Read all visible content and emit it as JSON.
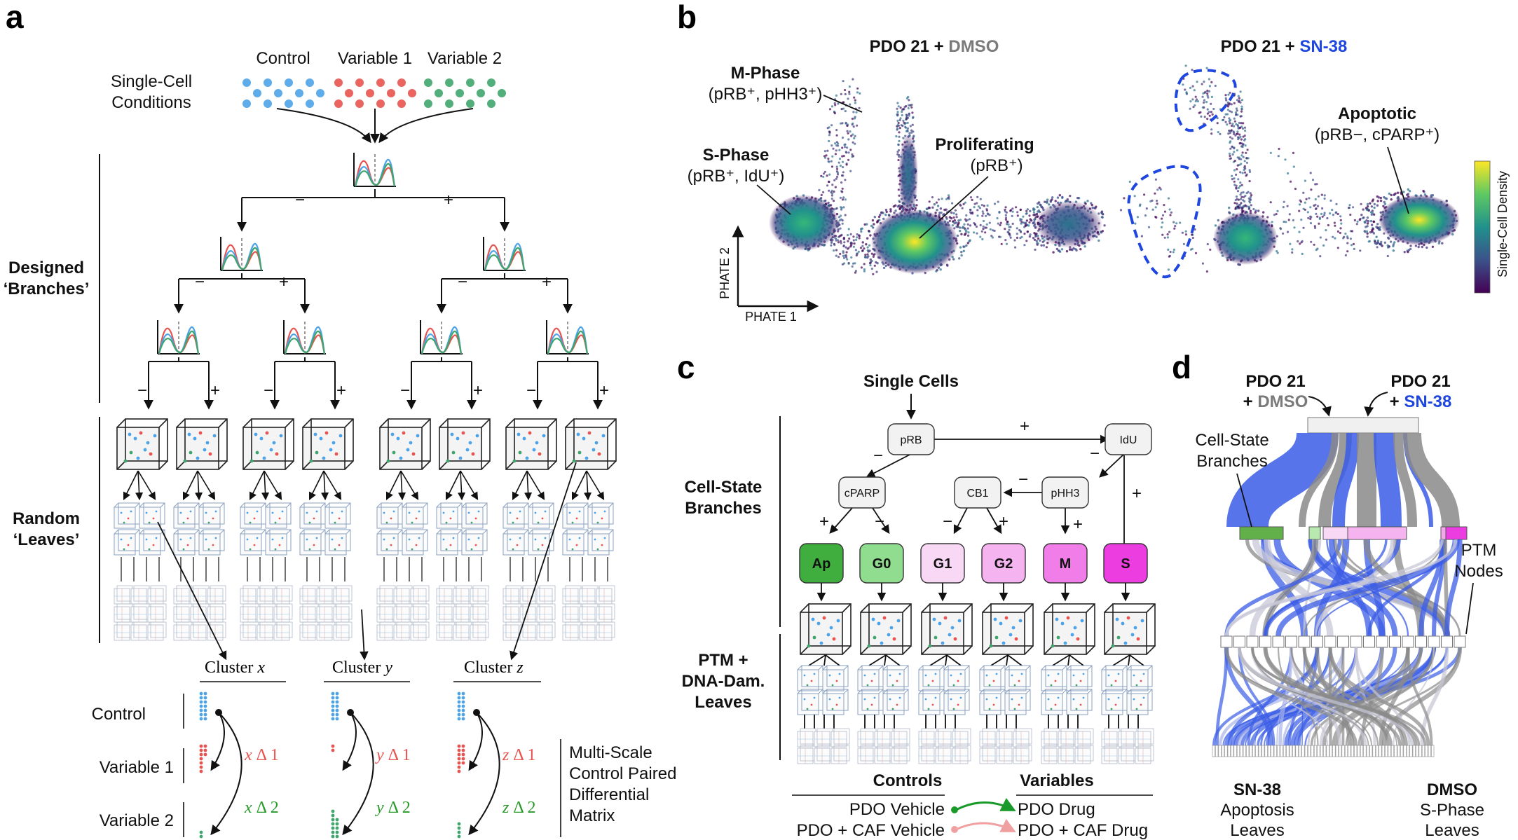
{
  "panel_a": {
    "label": "a",
    "conditions_label": [
      "Single-Cell",
      "Conditions"
    ],
    "conditions": [
      {
        "name": "Control",
        "color": "#4da3e8"
      },
      {
        "name": "Variable 1",
        "color": "#e8534f"
      },
      {
        "name": "Variable 2",
        "color": "#3fa56c"
      }
    ],
    "sign_minus": "−",
    "sign_plus": "+",
    "designed_branches": [
      "Designed",
      "‘Branches’"
    ],
    "random_leaves": [
      "Random",
      "‘Leaves’"
    ],
    "clusters": [
      {
        "prefix": "Cluster ",
        "var": "x"
      },
      {
        "prefix": "Cluster ",
        "var": "y"
      },
      {
        "prefix": "Cluster ",
        "var": "z"
      }
    ],
    "row_labels": [
      "Control",
      "Variable 1",
      "Variable 2"
    ],
    "deltas": [
      {
        "var": "x",
        "d1": "Δ 1",
        "d2": "Δ 2"
      },
      {
        "var": "y",
        "d1": "Δ 1",
        "d2": "Δ 2"
      },
      {
        "var": "z",
        "d1": "Δ 1",
        "d2": "Δ 2"
      }
    ],
    "matrix_label": [
      "Multi-Scale",
      "Control Paired",
      "Differential",
      "Matrix"
    ]
  },
  "panel_b": {
    "label": "b",
    "title_dmso": {
      "prefix": "PDO 21 + ",
      "drug": "DMSO"
    },
    "title_sn38": {
      "prefix": "PDO 21 + ",
      "drug": "SN-38"
    },
    "annotations": [
      {
        "title": "M-Phase",
        "sub": "(pRB⁺, pHH3⁺)"
      },
      {
        "title": "S-Phase",
        "sub": "(pRB⁺, IdU⁺)"
      },
      {
        "title": "Proliferating",
        "sub": "(pRB⁺)"
      },
      {
        "title": "Apoptotic",
        "sub": "(pRB−, cPARP⁺)"
      }
    ],
    "axis_x": "PHATE 1",
    "axis_y": "PHATE 2",
    "colorbar_label": "Single-Cell Density",
    "colormap": [
      "#440154",
      "#3b528b",
      "#21918c",
      "#5ec962",
      "#fde725"
    ],
    "dashed_color": "#1f47e0"
  },
  "panel_c": {
    "label": "c",
    "root": "Single Cells",
    "nodes": [
      "pRB",
      "IdU",
      "cPARP",
      "CB1",
      "pHH3"
    ],
    "leaves": [
      {
        "name": "Ap",
        "color": "#3fae3f"
      },
      {
        "name": "G0",
        "color": "#90dd90"
      },
      {
        "name": "G1",
        "color": "#f9d8f6"
      },
      {
        "name": "G2",
        "color": "#f5b3ef"
      },
      {
        "name": "M",
        "color": "#f07de8"
      },
      {
        "name": "S",
        "color": "#ec3de0"
      }
    ],
    "cell_state_branches": [
      "Cell-State",
      "Branches"
    ],
    "ptm_leaves": [
      "PTM +",
      "DNA-Dam.",
      "Leaves"
    ],
    "controls_header": "Controls",
    "variables_header": "Variables",
    "controls": [
      "PDO Vehicle",
      "PDO + CAF Vehicle"
    ],
    "variables": [
      "PDO Drug",
      "PDO + CAF Drug"
    ]
  },
  "panel_d": {
    "label": "d",
    "left_top": "PDO 21",
    "left_bottom": {
      "prefix": "+ ",
      "drug": "DMSO"
    },
    "right_top": "PDO 21",
    "right_bottom": {
      "prefix": "+ ",
      "drug": "SN-38"
    },
    "cell_state_branches": [
      "Cell-State",
      "Branches"
    ],
    "ptm_nodes": [
      "PTM",
      "Nodes"
    ],
    "sn38_leaves": {
      "drug": "SN-38",
      "lines": [
        "Apoptosis",
        "Leaves"
      ]
    },
    "dmso_leaves": {
      "drug": "DMSO",
      "lines": [
        "S-Phase",
        "Leaves"
      ]
    },
    "sn38_color": "#3b5ce6",
    "dmso_color": "#8a8a8a"
  }
}
